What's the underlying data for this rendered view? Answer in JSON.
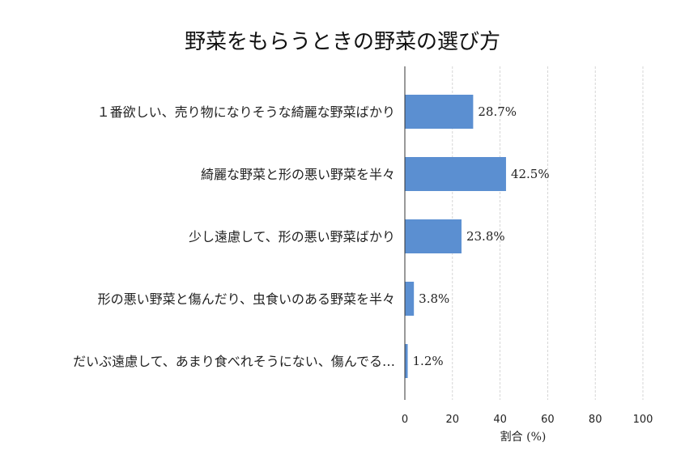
{
  "chart_data": {
    "type": "bar",
    "orientation": "horizontal",
    "title": "野菜をもらうときの野菜の選び方",
    "xlabel": "割合 (%)",
    "ylabel": "",
    "xlim": [
      0,
      100
    ],
    "xticks": [
      0,
      20,
      40,
      60,
      80,
      100
    ],
    "grid": true,
    "bar_color": "#5b8fd1",
    "value_suffix": "%",
    "categories": [
      "１番欲しい、売り物になりそうな綺麗な野菜ばかり",
      "綺麗な野菜と形の悪い野菜を半々",
      "少し遠慮して、形の悪い野菜ばかり",
      "形の悪い野菜と傷んだり、虫食いのある野菜を半々",
      "だいぶ遠慮して、あまり食べれそうにない、傷んでる…"
    ],
    "values": [
      28.7,
      42.5,
      23.8,
      3.8,
      1.2
    ]
  }
}
